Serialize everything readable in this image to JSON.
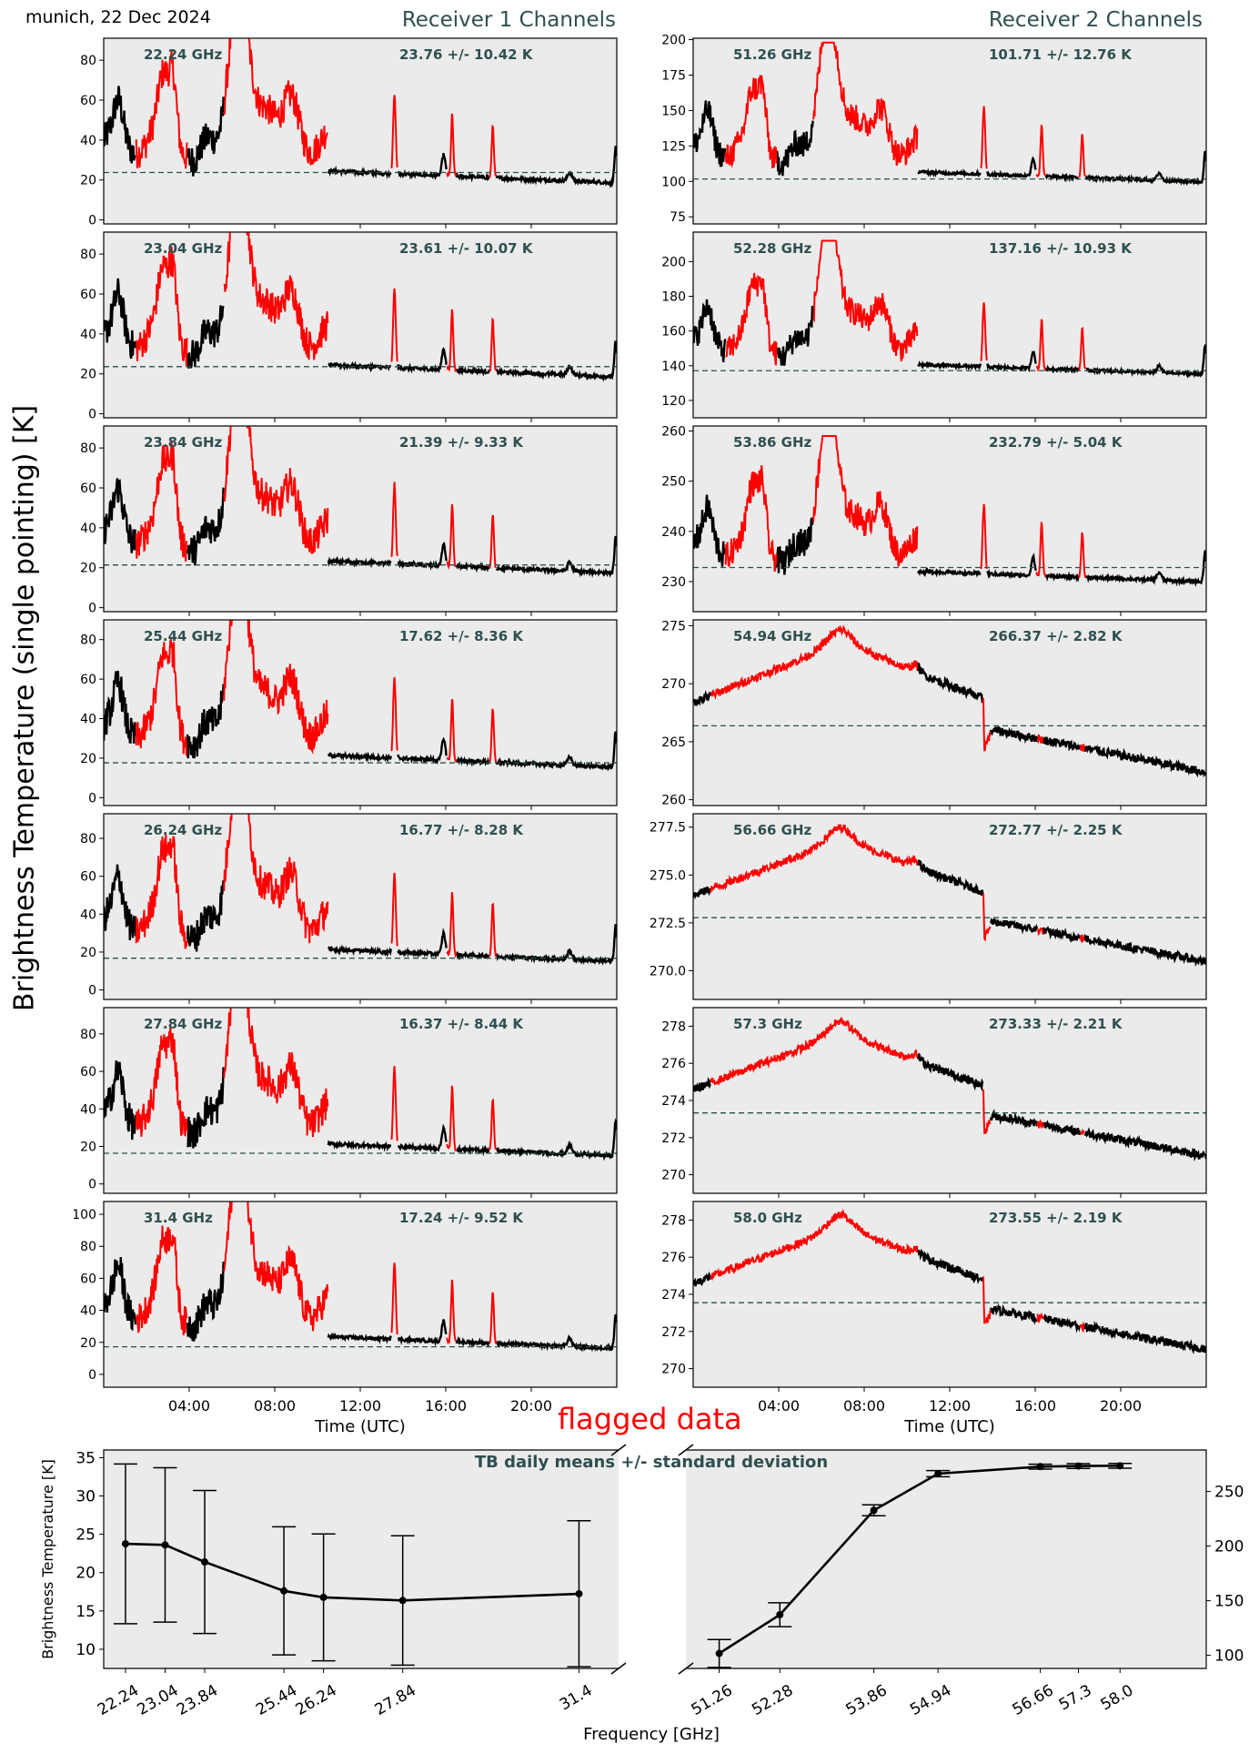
{
  "header": {
    "site_date": "munich, 22 Dec 2024",
    "receiver1_title": "Receiver 1 Channels",
    "receiver2_title": "Receiver 2 Channels",
    "ylabel": "Brightness Temperature (single pointing) [K]",
    "flagged_label": "flagged data"
  },
  "colors": {
    "flagged": "#ff0000",
    "good": "#000000",
    "panel_bg": "#ebebeb",
    "annotation": "#2f4f4f",
    "mean_line": "#2f4f4f"
  },
  "chart_data": [
    {
      "type": "line",
      "name": "receiver1-timeseries",
      "xlabel": "Time (UTC)",
      "x_range_hours": [
        0,
        24
      ],
      "x_ticks": [
        "04:00",
        "08:00",
        "12:00",
        "16:00",
        "20:00"
      ],
      "x_tick_hours": [
        4,
        8,
        12,
        16,
        20
      ],
      "panels": [
        {
          "freq": "22.24 GHz",
          "stats": "23.76 +/- 10.42 K",
          "mean": 23.76,
          "std": 10.42,
          "ylim": [
            -2,
            91
          ],
          "yticks": [
            0,
            20,
            40,
            60,
            80
          ],
          "profile": "r1"
        },
        {
          "freq": "23.04 GHz",
          "stats": "23.61 +/- 10.07 K",
          "mean": 23.61,
          "std": 10.07,
          "ylim": [
            -2,
            91
          ],
          "yticks": [
            0,
            20,
            40,
            60,
            80
          ],
          "profile": "r1"
        },
        {
          "freq": "23.84 GHz",
          "stats": "21.39 +/- 9.33 K",
          "mean": 21.39,
          "std": 9.33,
          "ylim": [
            -2,
            91
          ],
          "yticks": [
            0,
            20,
            40,
            60,
            80
          ],
          "profile": "r1"
        },
        {
          "freq": "25.44 GHz",
          "stats": "17.62 +/- 8.36 K",
          "mean": 17.62,
          "std": 8.36,
          "ylim": [
            -4,
            90
          ],
          "yticks": [
            0,
            20,
            40,
            60,
            80
          ],
          "profile": "r1"
        },
        {
          "freq": "26.24 GHz",
          "stats": "16.77 +/- 8.28 K",
          "mean": 16.77,
          "std": 8.28,
          "ylim": [
            -5,
            93
          ],
          "yticks": [
            0,
            20,
            40,
            60,
            80
          ],
          "profile": "r1"
        },
        {
          "freq": "27.84 GHz",
          "stats": "16.37 +/- 8.44 K",
          "mean": 16.37,
          "std": 8.44,
          "ylim": [
            -5,
            94
          ],
          "yticks": [
            0,
            20,
            40,
            60,
            80
          ],
          "profile": "r1"
        },
        {
          "freq": "31.4 GHz",
          "stats": "17.24 +/- 9.52 K",
          "mean": 17.24,
          "std": 9.52,
          "ylim": [
            -8,
            108
          ],
          "yticks": [
            0,
            20,
            40,
            60,
            80,
            100
          ],
          "profile": "r1"
        }
      ]
    },
    {
      "type": "line",
      "name": "receiver2-timeseries",
      "xlabel": "Time (UTC)",
      "x_range_hours": [
        0,
        24
      ],
      "x_ticks": [
        "04:00",
        "08:00",
        "12:00",
        "16:00",
        "20:00"
      ],
      "x_tick_hours": [
        4,
        8,
        12,
        16,
        20
      ],
      "panels": [
        {
          "freq": "51.26 GHz",
          "stats": "101.71 +/- 12.76 K",
          "mean": 101.71,
          "std": 12.76,
          "ylim": [
            70,
            201
          ],
          "yticks": [
            75,
            100,
            125,
            150,
            175,
            200
          ],
          "profile": "r1",
          "base": 93,
          "peak": 198
        },
        {
          "freq": "52.28 GHz",
          "stats": "137.16 +/- 10.93 K",
          "mean": 137.16,
          "std": 10.93,
          "ylim": [
            110,
            217
          ],
          "yticks": [
            120,
            140,
            160,
            180,
            200
          ],
          "profile": "r1",
          "base": 130,
          "peak": 212
        },
        {
          "freq": "53.86 GHz",
          "stats": "232.79 +/- 5.04 K",
          "mean": 232.79,
          "std": 5.04,
          "ylim": [
            224,
            261
          ],
          "yticks": [
            230,
            240,
            250,
            260
          ],
          "profile": "r1",
          "base": 228,
          "peak": 259
        },
        {
          "freq": "54.94 GHz",
          "stats": "266.37 +/- 2.82 K",
          "mean": 266.37,
          "std": 2.82,
          "ylim": [
            259.5,
            275.5
          ],
          "yticks": [
            260,
            265,
            270,
            275
          ],
          "profile": "r2"
        },
        {
          "freq": "56.66 GHz",
          "stats": "272.77 +/- 2.25 K",
          "mean": 272.77,
          "std": 2.25,
          "ylim": [
            268.5,
            278.2
          ],
          "yticks": [
            270.0,
            272.5,
            275.0,
            277.5
          ],
          "tickfmt": 1,
          "profile": "r2"
        },
        {
          "freq": "57.3 GHz",
          "stats": "273.33 +/- 2.21 K",
          "mean": 273.33,
          "std": 2.21,
          "ylim": [
            269,
            279
          ],
          "yticks": [
            270,
            272,
            274,
            276,
            278
          ],
          "profile": "r2"
        },
        {
          "freq": "58.0 GHz",
          "stats": "273.55 +/- 2.19 K",
          "mean": 273.55,
          "std": 2.19,
          "ylim": [
            269,
            279
          ],
          "yticks": [
            270,
            272,
            274,
            276,
            278
          ],
          "profile": "r2"
        }
      ]
    },
    {
      "type": "line",
      "name": "daily-means",
      "title": "TB daily means +/- standard deviation",
      "xlabel": "Frequency [GHz]",
      "ylabel_left": "Brightness Temperature [K]",
      "left": {
        "freqs": [
          22.24,
          23.04,
          23.84,
          25.44,
          26.24,
          27.84,
          31.4
        ],
        "labels": [
          "22.24",
          "23.04",
          "23.84",
          "25.44",
          "26.24",
          "27.84",
          "31.4"
        ],
        "means": [
          23.76,
          23.61,
          21.39,
          17.62,
          16.77,
          16.37,
          17.24
        ],
        "stds": [
          10.42,
          10.07,
          9.33,
          8.36,
          8.28,
          8.44,
          9.52
        ],
        "xlim": [
          21.8,
          32.2
        ],
        "ylim": [
          7.5,
          36
        ],
        "yticks": [
          10,
          15,
          20,
          25,
          30,
          35
        ]
      },
      "right": {
        "freqs": [
          51.26,
          52.28,
          53.86,
          54.94,
          56.66,
          57.3,
          58.0
        ],
        "labels": [
          "51.26",
          "52.28",
          "53.86",
          "54.94",
          "56.66",
          "57.3",
          "58.0"
        ],
        "means": [
          101.71,
          137.16,
          232.79,
          266.37,
          272.77,
          273.33,
          273.55
        ],
        "stds": [
          12.76,
          10.93,
          5.04,
          2.82,
          2.25,
          2.21,
          2.19
        ],
        "xlim": [
          50.7,
          59.45
        ],
        "ylim": [
          88,
          288
        ],
        "yticks": [
          100,
          150,
          200,
          250
        ]
      }
    }
  ]
}
